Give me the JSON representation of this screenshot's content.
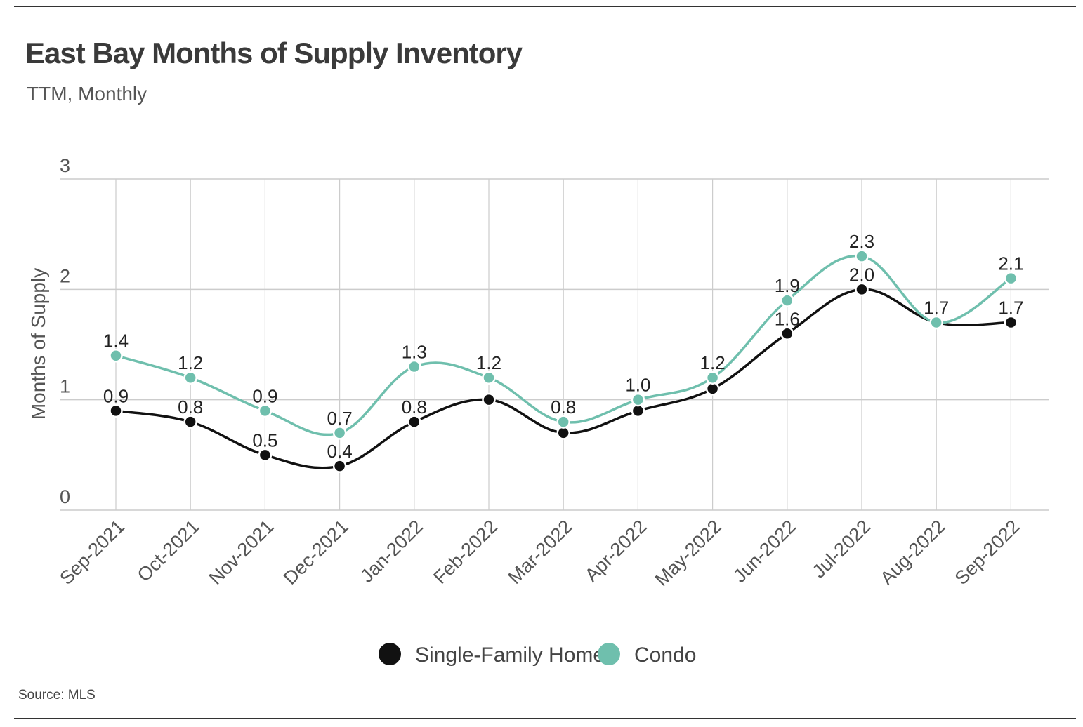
{
  "header": {
    "title": "East Bay Months of Supply Inventory",
    "subtitle": "TTM, Monthly"
  },
  "footer": {
    "source": "Source: MLS"
  },
  "colors": {
    "single_family": "#111111",
    "condo": "#6fbfad",
    "grid": "#cccccc",
    "text": "#333333"
  },
  "chart_data": {
    "type": "line",
    "title": "East Bay Months of Supply Inventory",
    "subtitle": "TTM, Monthly",
    "xlabel": "",
    "ylabel": "Months of Supply",
    "ylim": [
      0,
      3
    ],
    "yticks": [
      "0",
      "1",
      "2",
      "3"
    ],
    "grid": true,
    "legend": "bottom-center",
    "categories": [
      "Sep-2021",
      "Oct-2021",
      "Nov-2021",
      "Dec-2021",
      "Jan-2022",
      "Feb-2022",
      "Mar-2022",
      "Apr-2022",
      "May-2022",
      "Jun-2022",
      "Jul-2022",
      "Aug-2022",
      "Sep-2022"
    ],
    "series": [
      {
        "name": "Single-Family Home",
        "color": "#111111",
        "values": [
          0.9,
          0.8,
          0.5,
          0.4,
          0.8,
          1.0,
          0.7,
          0.9,
          1.1,
          1.6,
          2.0,
          1.7,
          1.7
        ],
        "labels": [
          "0.9",
          "0.8",
          "0.5",
          "0.4",
          "0.8",
          "",
          "",
          "",
          "",
          "1.6",
          "2.0",
          "",
          "1.7"
        ]
      },
      {
        "name": "Condo",
        "color": "#6fbfad",
        "values": [
          1.4,
          1.2,
          0.9,
          0.7,
          1.3,
          1.2,
          0.8,
          1.0,
          1.2,
          1.9,
          2.3,
          1.7,
          2.1
        ],
        "labels": [
          "1.4",
          "1.2",
          "0.9",
          "0.7",
          "1.3",
          "1.2",
          "0.8",
          "1.0",
          "1.2",
          "1.9",
          "2.3",
          "1.7",
          "2.1"
        ]
      }
    ]
  }
}
